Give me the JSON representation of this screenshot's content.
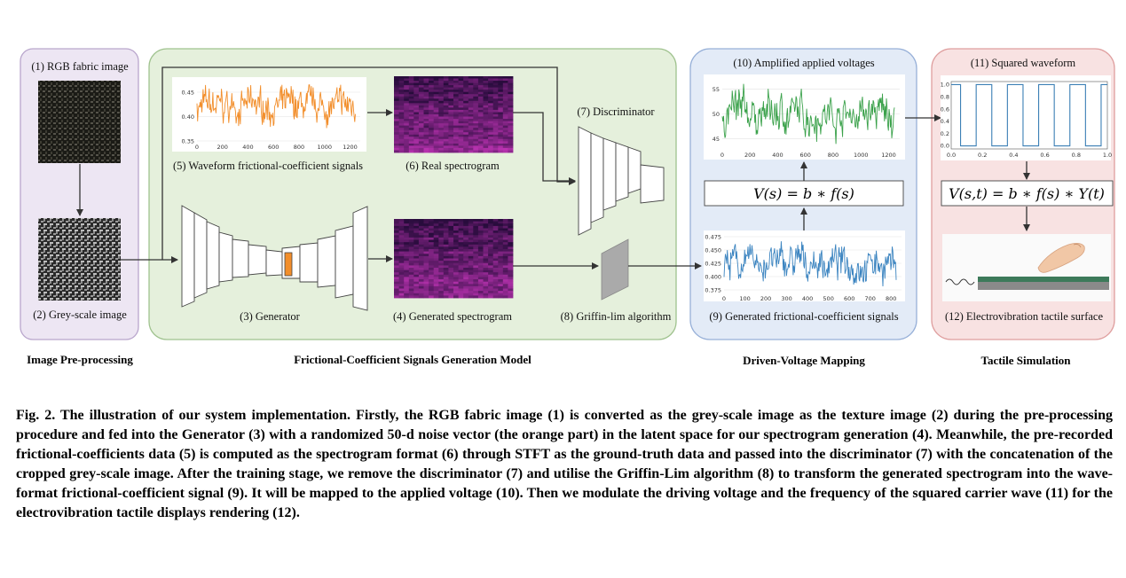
{
  "panels": {
    "rgb_image": "(1) RGB fabric image",
    "grey_image": "(2) Grey-scale image",
    "generator": "(3) Generator",
    "generated_spectrogram": "(4) Generated spectrogram",
    "waveform_signals": "(5) Waveform frictional-coefficient signals",
    "real_spectrogram": "(6) Real spectrogram",
    "discriminator": "(7) Discriminator",
    "griffin_lim": "(8) Griffin-lim algorithm",
    "generated_signals": "(9) Generated frictional-coefficient signals",
    "amplified_voltages": "(10) Amplified applied voltages",
    "squared_waveform": "(11) Squared  waveform",
    "tactile_surface": "(12) Electrovibration tactile surface"
  },
  "equations": {
    "voltage": "V(s) = b ∗ f(s)",
    "modulated": "V(s,t) = b ∗ f(s) ∗ Y(t)"
  },
  "sections": {
    "preprocessing": "Image Pre-processing",
    "generation_model": "Frictional-Coefficient Signals Generation Model",
    "voltage_mapping": "Driven-Voltage Mapping",
    "tactile_simulation": "Tactile Simulation"
  },
  "colors": {
    "preproc_bg": "#ede6f3",
    "preproc_border": "#b9a6cc",
    "model_bg": "#e5f0dc",
    "model_border": "#9fc28e",
    "mapping_bg": "#e3ebf7",
    "mapping_border": "#97b0d8",
    "tactile_bg": "#f8e2e2",
    "tactile_border": "#df9f9f",
    "orange_series": "#f28e2b",
    "green_series": "#3aa14a",
    "blue_series": "#3b84c0",
    "square_series": "#3b7fb5",
    "latent_noise": "#f28e2b"
  },
  "chart_data": [
    {
      "name": "waveform",
      "type": "line",
      "x_ticks": [
        "0",
        "200",
        "400",
        "600",
        "800",
        "1000",
        "1200"
      ],
      "y_ticks": [
        "0.35",
        "0.40",
        "0.45"
      ],
      "ylim": [
        0.35,
        0.47
      ],
      "xlim": [
        0,
        1280
      ],
      "series": [
        {
          "values_summary": {
            "mean": 0.42,
            "min": 0.36,
            "max": 0.465
          }
        }
      ]
    },
    {
      "name": "amplified_voltages",
      "type": "line",
      "x_ticks": [
        "0",
        "200",
        "400",
        "600",
        "800",
        "1000",
        "1200"
      ],
      "y_ticks": [
        "45",
        "50",
        "55"
      ],
      "ylim": [
        43,
        57
      ],
      "xlim": [
        0,
        1280
      ],
      "series": [
        {
          "values_summary": {
            "mean": 50,
            "min": 44,
            "max": 56
          }
        }
      ]
    },
    {
      "name": "generated_signals",
      "type": "line",
      "x_ticks": [
        "0",
        "100",
        "200",
        "300",
        "400",
        "500",
        "600",
        "700",
        "800"
      ],
      "y_ticks": [
        "0.375",
        "0.400",
        "0.425",
        "0.450",
        "0.475"
      ],
      "ylim": [
        0.37,
        0.48
      ],
      "xlim": [
        0,
        850
      ],
      "series": [
        {
          "values_summary": {
            "mean": 0.425,
            "min": 0.38,
            "max": 0.478
          }
        }
      ]
    },
    {
      "name": "squared_waveform",
      "type": "line",
      "x_ticks": [
        "0.0",
        "0.2",
        "0.4",
        "0.6",
        "0.8",
        "1.0"
      ],
      "y_ticks": [
        "0.0",
        "0.2",
        "0.4",
        "0.6",
        "0.8",
        "1.0"
      ],
      "ylim": [
        -0.05,
        1.05
      ],
      "xlim": [
        0,
        1
      ],
      "series": [
        {
          "period": 0.2,
          "rise_offset": 0.06,
          "low": 0.0,
          "high": 1.0
        }
      ]
    }
  ],
  "caption": "Fig. 2. The illustration of our system implementation. Firstly, the RGB fabric image (1) is converted as the grey-scale image as the texture image (2) during the pre-processing procedure and fed into the Generator (3) with a randomized 50-d noise vector (the orange part) in the latent space for our spectrogram generation (4). Meanwhile, the pre-recorded frictional-coefficients data (5) is computed as the spectrogram format (6) through STFT as the ground-truth data and passed into the discriminator (7) with the concatenation of the cropped grey-scale image. After the training stage, we remove the discriminator (7) and utilise the Griffin-Lim algorithm (8) to transform the generated spectrogram into the wave-format frictional-coefficient signal (9). It will be mapped to the applied voltage (10). Then we modulate the driving voltage and the frequency of the squared carrier wave (11) for the electrovibration tactile displays rendering (12)."
}
